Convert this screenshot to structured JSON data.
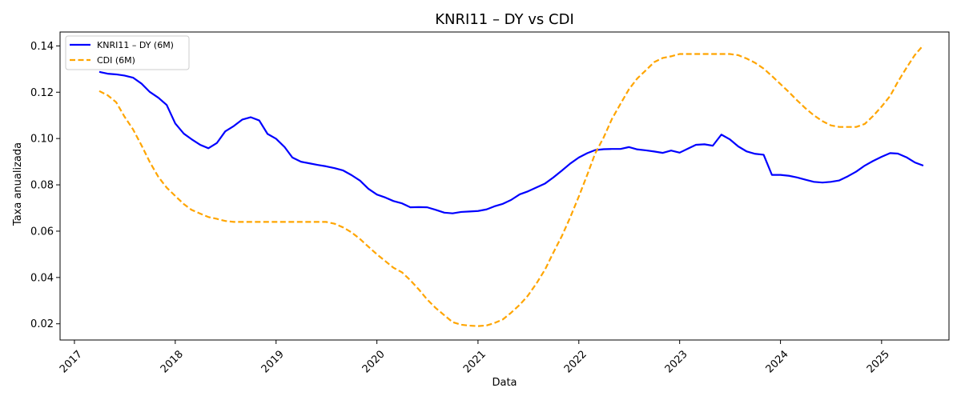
{
  "chart_data": {
    "type": "line",
    "title": "KNRI11 – DY vs CDI",
    "xlabel": "Data",
    "ylabel": "Taxa anualizada",
    "xlim": [
      "2016-11-10",
      "2025-09-02"
    ],
    "ylim": [
      0.013,
      0.146
    ],
    "x_ticks": [
      {
        "date": "2017-01-01",
        "label": "2017"
      },
      {
        "date": "2018-01-01",
        "label": "2018"
      },
      {
        "date": "2019-01-01",
        "label": "2019"
      },
      {
        "date": "2020-01-01",
        "label": "2020"
      },
      {
        "date": "2021-01-01",
        "label": "2021"
      },
      {
        "date": "2022-01-01",
        "label": "2022"
      },
      {
        "date": "2023-01-01",
        "label": "2023"
      },
      {
        "date": "2024-01-01",
        "label": "2024"
      },
      {
        "date": "2025-01-01",
        "label": "2025"
      }
    ],
    "y_ticks": [
      {
        "value": 0.02,
        "label": "0.02"
      },
      {
        "value": 0.04,
        "label": "0.04"
      },
      {
        "value": 0.06,
        "label": "0.06"
      },
      {
        "value": 0.08,
        "label": "0.08"
      },
      {
        "value": 0.1,
        "label": "0.10"
      },
      {
        "value": 0.12,
        "label": "0.12"
      },
      {
        "value": 0.14,
        "label": "0.14"
      }
    ],
    "legend_position": "upper-left",
    "grid": false,
    "series": [
      {
        "name": "KNRI11 – DY (6M)",
        "color": "#0000ff",
        "style": "solid",
        "points": [
          [
            "2017-04-01",
            0.1288
          ],
          [
            "2017-05-01",
            0.128
          ],
          [
            "2017-06-01",
            0.1277
          ],
          [
            "2017-07-01",
            0.1272
          ],
          [
            "2017-08-01",
            0.1263
          ],
          [
            "2017-09-01",
            0.1237
          ],
          [
            "2017-10-01",
            0.1201
          ],
          [
            "2017-11-01",
            0.1176
          ],
          [
            "2017-12-01",
            0.1145
          ],
          [
            "2018-01-01",
            0.1065
          ],
          [
            "2018-02-01",
            0.1021
          ],
          [
            "2018-03-01",
            0.0997
          ],
          [
            "2018-04-01",
            0.0973
          ],
          [
            "2018-05-01",
            0.0958
          ],
          [
            "2018-06-01",
            0.0981
          ],
          [
            "2018-07-01",
            0.1031
          ],
          [
            "2018-08-01",
            0.1054
          ],
          [
            "2018-09-01",
            0.1082
          ],
          [
            "2018-10-01",
            0.1092
          ],
          [
            "2018-11-01",
            0.1078
          ],
          [
            "2018-12-01",
            0.102
          ],
          [
            "2019-01-01",
            0.0999
          ],
          [
            "2019-02-01",
            0.0963
          ],
          [
            "2019-03-01",
            0.0918
          ],
          [
            "2019-04-01",
            0.09
          ],
          [
            "2019-05-01",
            0.0893
          ],
          [
            "2019-06-01",
            0.0886
          ],
          [
            "2019-07-01",
            0.088
          ],
          [
            "2019-08-01",
            0.0872
          ],
          [
            "2019-09-01",
            0.0862
          ],
          [
            "2019-10-01",
            0.0842
          ],
          [
            "2019-11-01",
            0.0818
          ],
          [
            "2019-12-01",
            0.0783
          ],
          [
            "2020-01-01",
            0.0758
          ],
          [
            "2020-02-01",
            0.0745
          ],
          [
            "2020-03-01",
            0.073
          ],
          [
            "2020-04-01",
            0.072
          ],
          [
            "2020-05-01",
            0.0703
          ],
          [
            "2020-06-01",
            0.0704
          ],
          [
            "2020-07-01",
            0.0703
          ],
          [
            "2020-08-01",
            0.0692
          ],
          [
            "2020-09-01",
            0.068
          ],
          [
            "2020-10-01",
            0.0677
          ],
          [
            "2020-11-01",
            0.0683
          ],
          [
            "2020-12-01",
            0.0685
          ],
          [
            "2021-01-01",
            0.0687
          ],
          [
            "2021-02-01",
            0.0694
          ],
          [
            "2021-03-01",
            0.0707
          ],
          [
            "2021-04-01",
            0.0718
          ],
          [
            "2021-05-01",
            0.0735
          ],
          [
            "2021-06-01",
            0.0759
          ],
          [
            "2021-07-01",
            0.0772
          ],
          [
            "2021-08-01",
            0.0789
          ],
          [
            "2021-09-01",
            0.0806
          ],
          [
            "2021-10-01",
            0.0832
          ],
          [
            "2021-11-01",
            0.0862
          ],
          [
            "2021-12-01",
            0.0892
          ],
          [
            "2022-01-01",
            0.0918
          ],
          [
            "2022-02-01",
            0.0937
          ],
          [
            "2022-03-01",
            0.095
          ],
          [
            "2022-04-01",
            0.0954
          ],
          [
            "2022-05-01",
            0.0955
          ],
          [
            "2022-06-01",
            0.0955
          ],
          [
            "2022-07-01",
            0.0963
          ],
          [
            "2022-08-01",
            0.0953
          ],
          [
            "2022-09-01",
            0.0949
          ],
          [
            "2022-10-01",
            0.0944
          ],
          [
            "2022-11-01",
            0.0938
          ],
          [
            "2022-12-01",
            0.0948
          ],
          [
            "2023-01-01",
            0.0939
          ],
          [
            "2023-02-01",
            0.0957
          ],
          [
            "2023-03-01",
            0.0973
          ],
          [
            "2023-04-01",
            0.0975
          ],
          [
            "2023-05-01",
            0.0969
          ],
          [
            "2023-06-01",
            0.1017
          ],
          [
            "2023-07-01",
            0.0997
          ],
          [
            "2023-08-01",
            0.0966
          ],
          [
            "2023-09-01",
            0.0944
          ],
          [
            "2023-10-01",
            0.0934
          ],
          [
            "2023-11-01",
            0.093
          ],
          [
            "2023-12-01",
            0.0843
          ],
          [
            "2024-01-01",
            0.0843
          ],
          [
            "2024-02-01",
            0.0839
          ],
          [
            "2024-03-01",
            0.0832
          ],
          [
            "2024-04-01",
            0.0822
          ],
          [
            "2024-05-01",
            0.0813
          ],
          [
            "2024-06-01",
            0.081
          ],
          [
            "2024-07-01",
            0.0813
          ],
          [
            "2024-08-01",
            0.0819
          ],
          [
            "2024-09-01",
            0.0837
          ],
          [
            "2024-10-01",
            0.0857
          ],
          [
            "2024-11-01",
            0.0883
          ],
          [
            "2024-12-01",
            0.0903
          ],
          [
            "2025-01-01",
            0.0921
          ],
          [
            "2025-02-01",
            0.0937
          ],
          [
            "2025-03-01",
            0.0935
          ],
          [
            "2025-04-01",
            0.0919
          ],
          [
            "2025-05-01",
            0.0897
          ],
          [
            "2025-06-01",
            0.0883
          ]
        ]
      },
      {
        "name": "CDI (6M)",
        "color": "#ffa500",
        "style": "dashed",
        "points": [
          [
            "2017-04-01",
            0.1205
          ],
          [
            "2017-05-01",
            0.1187
          ],
          [
            "2017-06-01",
            0.1157
          ],
          [
            "2017-07-01",
            0.1095
          ],
          [
            "2017-08-01",
            0.104
          ],
          [
            "2017-09-01",
            0.097
          ],
          [
            "2017-10-01",
            0.0898
          ],
          [
            "2017-11-01",
            0.0834
          ],
          [
            "2017-12-01",
            0.0788
          ],
          [
            "2018-01-01",
            0.0752
          ],
          [
            "2018-02-01",
            0.0717
          ],
          [
            "2018-03-01",
            0.0692
          ],
          [
            "2018-04-01",
            0.0676
          ],
          [
            "2018-05-01",
            0.0661
          ],
          [
            "2018-06-01",
            0.0653
          ],
          [
            "2018-07-01",
            0.0644
          ],
          [
            "2018-08-01",
            0.064
          ],
          [
            "2019-01-01",
            0.064
          ],
          [
            "2019-07-01",
            0.064
          ],
          [
            "2019-08-01",
            0.0632
          ],
          [
            "2019-09-01",
            0.0616
          ],
          [
            "2019-10-01",
            0.0595
          ],
          [
            "2019-11-01",
            0.0566
          ],
          [
            "2019-12-01",
            0.0533
          ],
          [
            "2020-01-01",
            0.05
          ],
          [
            "2020-02-01",
            0.047
          ],
          [
            "2020-03-01",
            0.0442
          ],
          [
            "2020-04-01",
            0.0422
          ],
          [
            "2020-05-01",
            0.0388
          ],
          [
            "2020-06-01",
            0.0348
          ],
          [
            "2020-07-01",
            0.0305
          ],
          [
            "2020-08-01",
            0.0268
          ],
          [
            "2020-09-01",
            0.0237
          ],
          [
            "2020-10-01",
            0.0207
          ],
          [
            "2020-11-01",
            0.0196
          ],
          [
            "2020-12-01",
            0.0192
          ],
          [
            "2021-01-01",
            0.019
          ],
          [
            "2021-02-01",
            0.0193
          ],
          [
            "2021-03-01",
            0.0203
          ],
          [
            "2021-04-01",
            0.0219
          ],
          [
            "2021-05-01",
            0.0248
          ],
          [
            "2021-06-01",
            0.0282
          ],
          [
            "2021-07-01",
            0.0322
          ],
          [
            "2021-08-01",
            0.0375
          ],
          [
            "2021-09-01",
            0.0435
          ],
          [
            "2021-10-01",
            0.0508
          ],
          [
            "2021-11-01",
            0.058
          ],
          [
            "2021-12-01",
            0.066
          ],
          [
            "2022-01-01",
            0.075
          ],
          [
            "2022-02-01",
            0.0845
          ],
          [
            "2022-03-01",
            0.0935
          ],
          [
            "2022-04-01",
            0.1005
          ],
          [
            "2022-05-01",
            0.1085
          ],
          [
            "2022-06-01",
            0.115
          ],
          [
            "2022-07-01",
            0.1212
          ],
          [
            "2022-08-01",
            0.126
          ],
          [
            "2022-09-01",
            0.1295
          ],
          [
            "2022-10-01",
            0.133
          ],
          [
            "2022-11-01",
            0.1348
          ],
          [
            "2022-12-01",
            0.1355
          ],
          [
            "2023-01-01",
            0.1365
          ],
          [
            "2023-07-01",
            0.1365
          ],
          [
            "2023-08-01",
            0.136
          ],
          [
            "2023-09-01",
            0.1345
          ],
          [
            "2023-10-01",
            0.1327
          ],
          [
            "2023-11-01",
            0.1302
          ],
          [
            "2023-12-01",
            0.127
          ],
          [
            "2024-01-01",
            0.1235
          ],
          [
            "2024-02-01",
            0.12
          ],
          [
            "2024-03-01",
            0.1165
          ],
          [
            "2024-04-01",
            0.113
          ],
          [
            "2024-05-01",
            0.11
          ],
          [
            "2024-06-01",
            0.1075
          ],
          [
            "2024-07-01",
            0.1057
          ],
          [
            "2024-08-01",
            0.105
          ],
          [
            "2024-10-01",
            0.105
          ],
          [
            "2024-11-01",
            0.1063
          ],
          [
            "2024-12-01",
            0.1097
          ],
          [
            "2025-01-01",
            0.1138
          ],
          [
            "2025-02-01",
            0.1184
          ],
          [
            "2025-03-01",
            0.1245
          ],
          [
            "2025-04-01",
            0.1305
          ],
          [
            "2025-05-01",
            0.136
          ],
          [
            "2025-06-01",
            0.1403
          ]
        ]
      }
    ]
  }
}
